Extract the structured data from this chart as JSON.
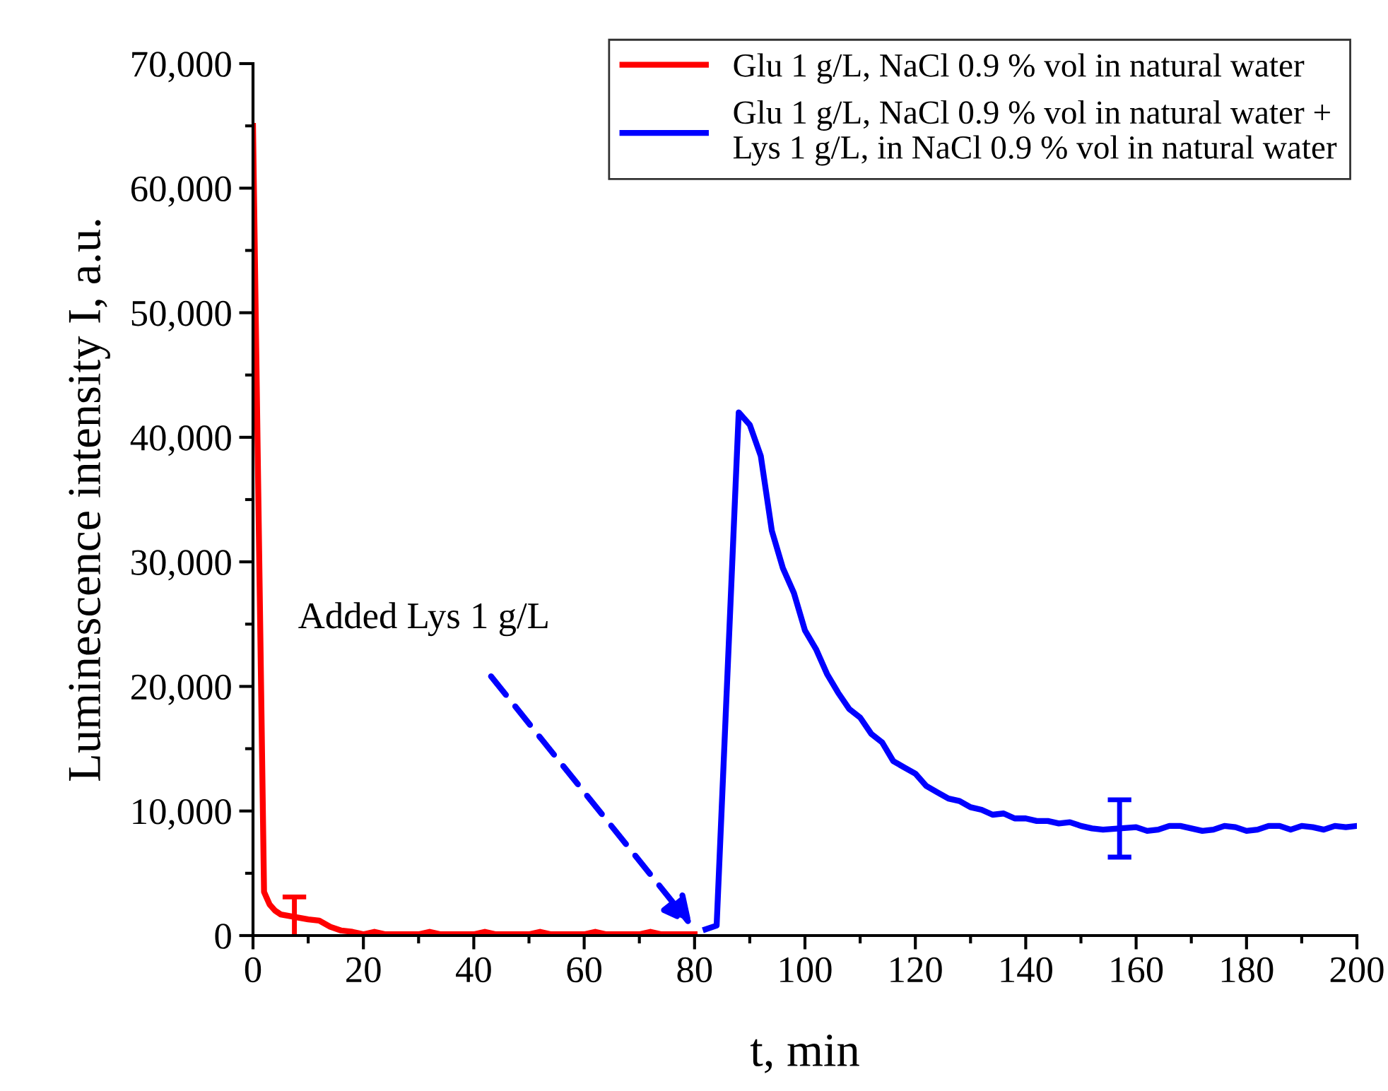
{
  "chart_data": {
    "type": "line",
    "xlabel": "t, min",
    "ylabel": "Luminescence intensity I, a.u.",
    "xlim": [
      0,
      200
    ],
    "xticks": [
      0,
      20,
      40,
      60,
      80,
      100,
      120,
      140,
      160,
      180,
      200
    ],
    "ylim": [
      0,
      70000
    ],
    "yticks": [
      {
        "value": 0,
        "label": "0"
      },
      {
        "value": 10000,
        "label": "10,000"
      },
      {
        "value": 20000,
        "label": "20,000"
      },
      {
        "value": 30000,
        "label": "30,000"
      },
      {
        "value": 40000,
        "label": "40,000"
      },
      {
        "value": 50000,
        "label": "50,000"
      },
      {
        "value": 60000,
        "label": "60,000"
      },
      {
        "value": 70000,
        "label": "70,000"
      }
    ],
    "grid": false,
    "legend": "top right",
    "marker": "none",
    "line_style": "solid",
    "series": [
      {
        "name": "Glu 1 g/L, NaCl 0.9 % vol in natural water",
        "color": "#ff0000",
        "x": [
          0,
          2,
          3,
          4,
          5,
          7.5,
          10,
          12,
          14,
          16,
          18,
          20,
          22,
          24,
          26,
          30,
          32,
          34,
          40,
          42,
          44,
          50,
          52,
          54,
          60,
          62,
          64,
          70,
          72,
          74,
          80
        ],
        "values": [
          65000,
          3500,
          2500,
          2000,
          1700,
          1500,
          1300,
          1200,
          700,
          400,
          300,
          100,
          300,
          100,
          100,
          100,
          300,
          100,
          100,
          300,
          100,
          100,
          300,
          100,
          100,
          300,
          100,
          100,
          300,
          100,
          100
        ],
        "errors": [
          null,
          null,
          null,
          null,
          null,
          1600,
          null,
          null,
          null,
          null,
          null,
          null,
          null,
          null,
          null,
          null,
          null,
          null,
          null,
          null,
          null,
          null,
          null,
          null,
          null,
          null,
          null,
          null,
          null,
          null,
          null
        ]
      },
      {
        "name": "Glu 1 g/L, NaCl 0.9 % vol in natural water +\nLys 1 g/L, in NaCl 0.9 % vol in natural water",
        "color": "#0000ff",
        "x": [
          82,
          84,
          88,
          90,
          92,
          94,
          96,
          98,
          100,
          102,
          104,
          106,
          108,
          110,
          112,
          114,
          116,
          118,
          120,
          122,
          124,
          126,
          128,
          130,
          132,
          134,
          136,
          138,
          140,
          142,
          144,
          146,
          148,
          150,
          152,
          154,
          157,
          160,
          162,
          164,
          166,
          168,
          170,
          172,
          174,
          176,
          178,
          180,
          182,
          184,
          186,
          188,
          190,
          192,
          194,
          196,
          198,
          200
        ],
        "values": [
          500,
          800,
          42000,
          41000,
          38500,
          32500,
          29500,
          27500,
          24500,
          23000,
          21000,
          19500,
          18200,
          17500,
          16200,
          15500,
          14000,
          13500,
          13000,
          12000,
          11500,
          11000,
          10800,
          10300,
          10100,
          9700,
          9800,
          9400,
          9400,
          9200,
          9200,
          9000,
          9100,
          8800,
          8600,
          8500,
          8600,
          8700,
          8400,
          8500,
          8800,
          8800,
          8600,
          8400,
          8500,
          8800,
          8700,
          8400,
          8500,
          8800,
          8800,
          8500,
          8800,
          8700,
          8500,
          8800,
          8700,
          8800
        ],
        "errors": [
          null,
          null,
          null,
          null,
          null,
          null,
          null,
          null,
          null,
          null,
          null,
          null,
          null,
          null,
          null,
          null,
          null,
          null,
          null,
          null,
          null,
          null,
          null,
          null,
          null,
          null,
          null,
          null,
          null,
          null,
          null,
          null,
          null,
          null,
          null,
          null,
          2300,
          null,
          null,
          null,
          null,
          null,
          null,
          null,
          null,
          null,
          null,
          null,
          null,
          null,
          null,
          null,
          null,
          null,
          null,
          null,
          null,
          null
        ]
      }
    ],
    "annotations": [
      {
        "text": "Added Lys 1 g/L",
        "x": 80,
        "y": 500
      }
    ]
  }
}
